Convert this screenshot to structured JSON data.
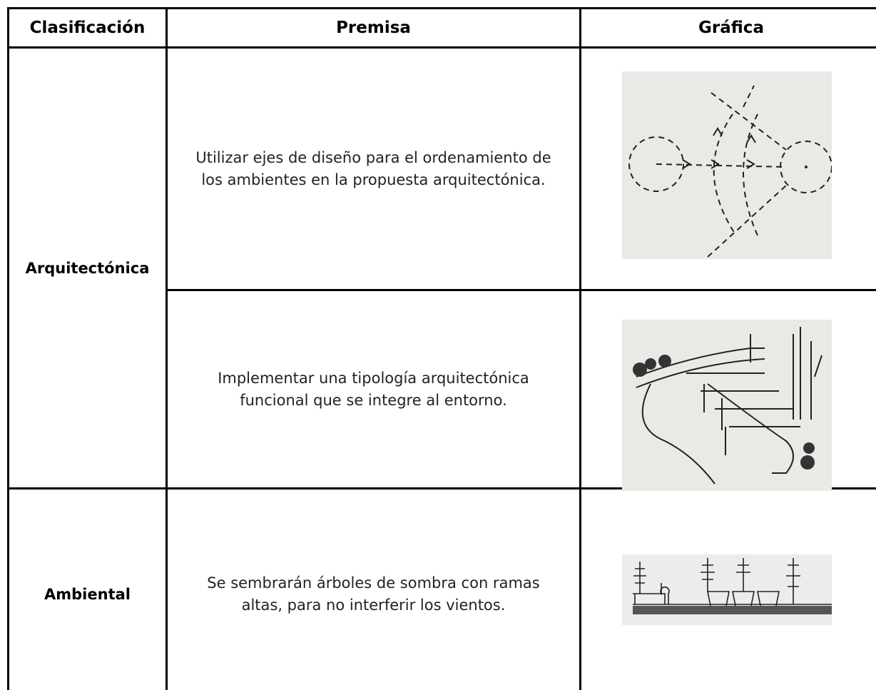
{
  "table": {
    "header": [
      "Clasificación",
      "Premisa",
      "Gráfica"
    ],
    "groups": [
      {
        "classification": "Arquitectónica",
        "premises": [
          "Utilizar ejes de diseño para el ordenamiento de los ambientes en la propuesta arquitectónica.",
          "Implementar una tipología arquitectónica funcional que se integre al entorno."
        ]
      },
      {
        "classification": "Ambiental",
        "premises": [
          "Se sembrarán árboles de sombra con ramas altas, para no interferir los vientos."
        ]
      }
    ]
  }
}
